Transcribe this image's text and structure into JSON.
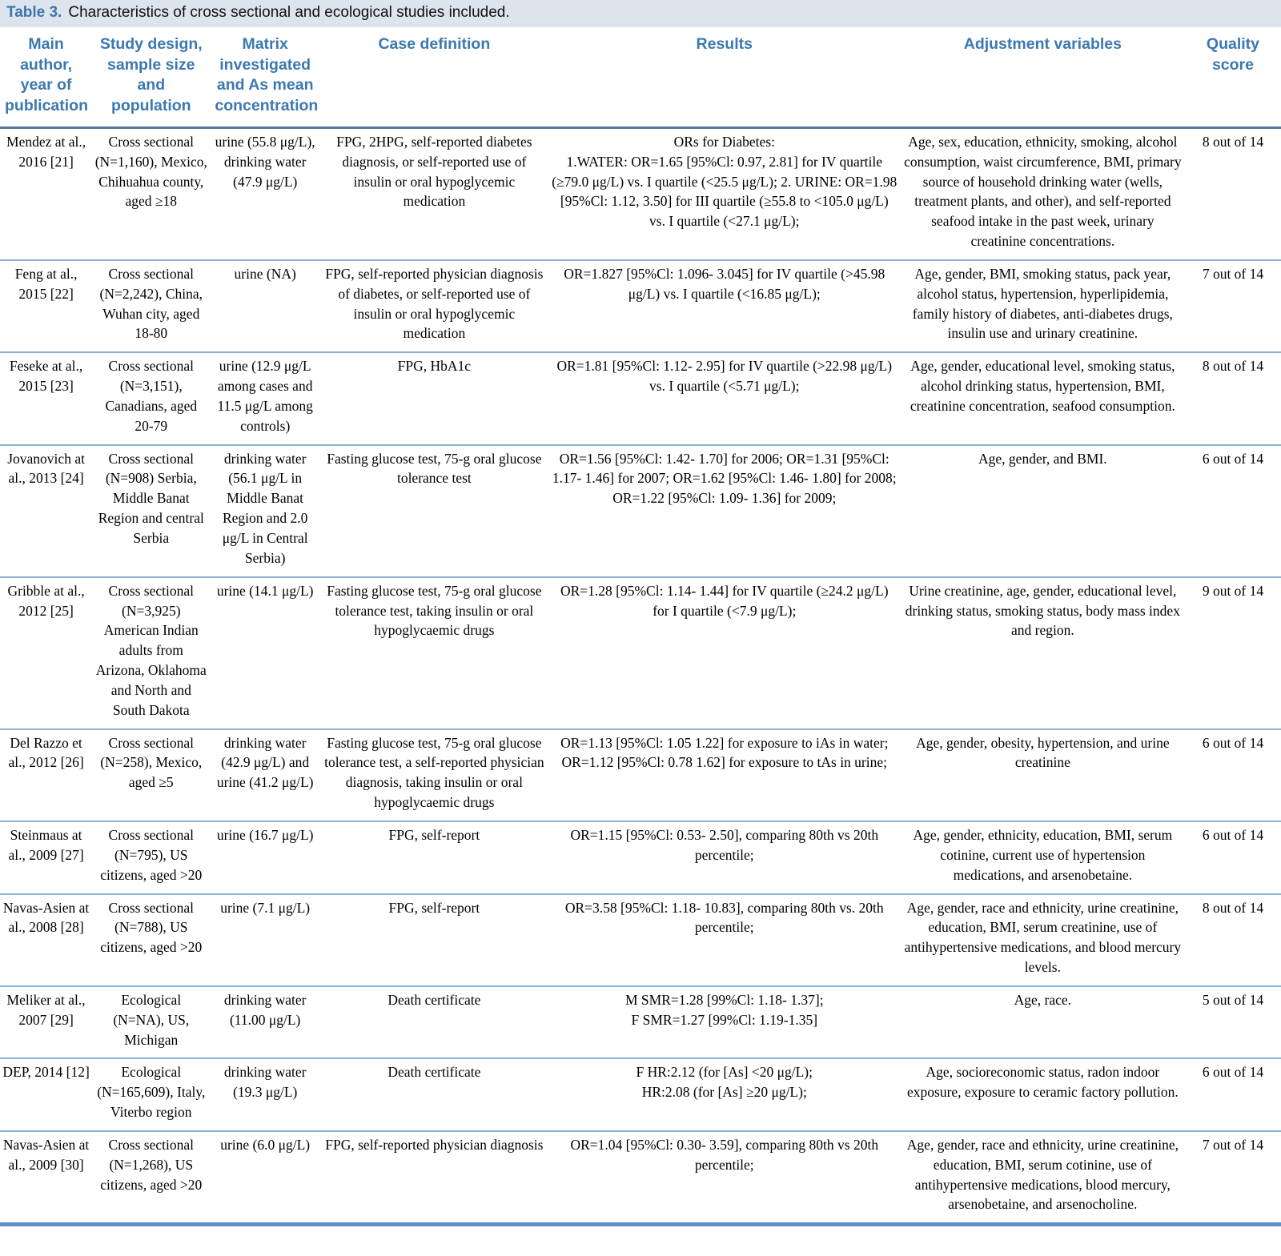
{
  "caption": {
    "label": "Table 3.",
    "text": "Characteristics of cross sectional and ecological studies included."
  },
  "colors": {
    "accent_blue": "#3c78b0",
    "caption_bg": "#dde4ee",
    "row_rule_blue": "#8cb2d6",
    "header_rule_blue": "#54789c",
    "bottom_border_blue": "#5b8ec5"
  },
  "table": {
    "columns": [
      "Main author, year of publication",
      "Study design, sample size and population",
      "Matrix investigated and As mean concentration",
      "Case definition",
      "Results",
      "Adjustment variables",
      "Quality score"
    ],
    "rows": [
      {
        "author": "Mendez at al., 2016 [21]",
        "design": "Cross sectional (N=1,160), Mexico, Chihuahua county, aged ≥18",
        "matrix": "urine (55.8 μg/L), drinking water (47.9 μg/L)",
        "case_definition": "FPG, 2HPG, self-reported diabetes diagnosis, or self-reported use of insulin or oral hypoglycemic medication",
        "results": "ORs for Diabetes:\n1.WATER: OR=1.65 [95%Cl: 0.97, 2.81] for IV quartile (≥79.0 μg/L) vs. I quartile (<25.5 μg/L); 2. URINE: OR=1.98 [95%Cl: 1.12, 3.50] for III quartile (≥55.8 to <105.0 μg/L) vs. I quartile (<27.1 μg/L);",
        "adjustment": "Age, sex, education, ethnicity, smoking, alcohol consumption, waist circumference, BMI, primary source of household drinking water (wells, treatment plants, and other), and self-reported seafood intake in the past week, urinary creatinine concentrations.",
        "quality": "8 out of 14"
      },
      {
        "author": "Feng at al., 2015 [22]",
        "design": "Cross sectional (N=2,242), China, Wuhan city, aged 18-80",
        "matrix": "urine (NA)",
        "case_definition": "FPG, self-reported physician diagnosis of diabetes, or self-reported use of insulin or oral hypoglycemic medication",
        "results": "OR=1.827 [95%Cl: 1.096- 3.045] for IV quartile (>45.98 μg/L) vs. I quartile (<16.85 μg/L);",
        "adjustment": "Age, gender, BMI, smoking status, pack year, alcohol status, hypertension, hyperlipidemia, family history of diabetes, anti-diabetes drugs, insulin use and urinary creatinine.",
        "quality": "7 out of 14"
      },
      {
        "author": "Feseke at al., 2015 [23]",
        "design": "Cross sectional (N=3,151), Canadians, aged 20-79",
        "matrix": "urine (12.9 μg/L among cases and 11.5 μg/L among controls)",
        "case_definition": "FPG, HbA1c",
        "results": "OR=1.81 [95%Cl: 1.12- 2.95] for IV quartile (>22.98 μg/L) vs. I quartile (<5.71 μg/L);",
        "adjustment": "Age, gender, educational level, smoking status, alcohol drinking status, hypertension, BMI, creatinine concentration, seafood consumption.",
        "quality": "8 out of 14"
      },
      {
        "author": "Jovanovich at al., 2013 [24]",
        "design": "Cross sectional (N=908) Serbia, Middle Banat Region and central Serbia",
        "matrix": "drinking water (56.1 μg/L in Middle Banat Region and 2.0 μg/L in Central Serbia)",
        "case_definition": "Fasting glucose test, 75-g oral glucose tolerance test",
        "results": "OR=1.56 [95%Cl: 1.42- 1.70] for 2006; OR=1.31 [95%Cl: 1.17- 1.46] for 2007; OR=1.62 [95%Cl: 1.46- 1.80] for 2008; OR=1.22 [95%Cl: 1.09- 1.36] for 2009;",
        "adjustment": "Age, gender, and BMI.",
        "quality": "6 out of 14"
      },
      {
        "author": "Gribble at al., 2012 [25]",
        "design": "Cross sectional (N=3,925) American Indian adults from Arizona, Oklahoma and North and South Dakota",
        "matrix": "urine (14.1 μg/L)",
        "case_definition": "Fasting glucose test, 75-g oral glucose tolerance test, taking insulin or oral hypoglycaemic drugs",
        "results": "OR=1.28 [95%Cl: 1.14- 1.44] for IV quartile (≥24.2 μg/L) for I quartile (<7.9 μg/L);",
        "adjustment": "Urine creatinine, age, gender, educational level, drinking status, smoking status, body mass index and region.",
        "quality": "9 out of 14"
      },
      {
        "author": "Del Razzo et al., 2012 [26]",
        "design": "Cross sectional (N=258), Mexico, aged ≥5",
        "matrix": "drinking water (42.9 μg/L) and urine (41.2 μg/L)",
        "case_definition": "Fasting glucose test, 75-g oral glucose tolerance test, a self-reported physician diagnosis, taking insulin or oral hypoglycaemic drugs",
        "results": "OR=1.13 [95%Cl: 1.05 1.22] for exposure to iAs in water;\nOR=1.12 [95%Cl: 0.78 1.62] for exposure to tAs in urine;",
        "adjustment": "Age, gender, obesity, hypertension, and urine creatinine",
        "quality": "6 out of 14"
      },
      {
        "author": "Steinmaus at al., 2009 [27]",
        "design": "Cross sectional (N=795), US citizens, aged >20",
        "matrix": "urine (16.7 μg/L)",
        "case_definition": "FPG, self-report",
        "results": "OR=1.15 [95%Cl: 0.53- 2.50], comparing 80th vs 20th percentile;",
        "adjustment": "Age, gender, ethnicity, education, BMI, serum cotinine, current use of hypertension medications, and arsenobetaine.",
        "quality": "6 out of 14"
      },
      {
        "author": "Navas-Asien at al., 2008 [28]",
        "design": "Cross sectional (N=788), US citizens, aged >20",
        "matrix": "urine (7.1 μg/L)",
        "case_definition": "FPG, self-report",
        "results": "OR=3.58 [95%Cl: 1.18- 10.83], comparing 80th vs. 20th percentile;",
        "adjustment": "Age, gender, race and ethnicity, urine creatinine, education, BMI, serum creatinine, use of antihypertensive medications, and blood mercury levels.",
        "quality": "8 out of 14"
      },
      {
        "author": "Meliker at al., 2007 [29]",
        "design": "Ecological (N=NA), US, Michigan",
        "matrix": "drinking water (11.00 μg/L)",
        "case_definition": "Death certificate",
        "results": "M SMR=1.28 [99%Cl: 1.18- 1.37];\nF SMR=1.27 [99%Cl: 1.19-1.35]",
        "adjustment": "Age, race.",
        "quality": "5 out of 14"
      },
      {
        "author": "DEP, 2014 [12]",
        "design": "Ecological (N=165,609), Italy, Viterbo region",
        "matrix": "drinking water (19.3 μg/L)",
        "case_definition": "Death certificate",
        "results": "F HR:2.12 (for [As] <20 μg/L);\nHR:2.08 (for [As] ≥20 μg/L);",
        "adjustment": "Age, socioreconomic status, radon indoor exposure, exposure to ceramic factory pollution.",
        "quality": "6 out of 14"
      },
      {
        "author": "Navas-Asien at al., 2009 [30]",
        "design": "Cross sectional (N=1,268), US citizens, aged >20",
        "matrix": "urine (6.0 μg/L)",
        "case_definition": "FPG, self-reported physician diagnosis",
        "results": "OR=1.04 [95%Cl: 0.30- 3.59], comparing 80th vs 20th percentile;",
        "adjustment": "Age, gender, race and ethnicity, urine creatinine, education, BMI, serum cotinine, use of antihypertensive medications, blood mercury, arsenobetaine, and arsenocholine.",
        "quality": "7 out of 14"
      }
    ]
  }
}
